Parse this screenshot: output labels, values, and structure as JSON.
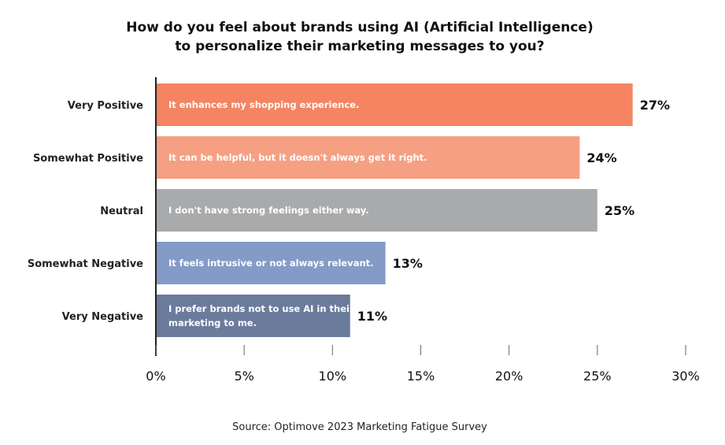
{
  "chart_data": {
    "type": "bar",
    "orientation": "horizontal",
    "title": [
      "How do you feel about brands using AI (Artificial Intelligence)",
      "to personalize their marketing messages to you?"
    ],
    "categories": [
      "Very Positive",
      "Somewhat Positive",
      "Neutral",
      "Somewhat Negative",
      "Very Negative"
    ],
    "values": [
      27,
      24,
      25,
      13,
      11
    ],
    "value_labels": [
      "27%",
      "24%",
      "25%",
      "13%",
      "11%"
    ],
    "bar_text": [
      [
        "It enhances my shopping experience."
      ],
      [
        "It can be helpful, but it doesn't always get it right."
      ],
      [
        "I don't have strong feelings either way."
      ],
      [
        "It feels intrusive or not always relevant."
      ],
      [
        "I prefer brands not to use AI in their",
        "marketing to me."
      ]
    ],
    "colors": [
      "#F48462",
      "#F5A083",
      "#A9AAAB",
      "#839BC6",
      "#6B7B9C"
    ],
    "xlim": [
      0,
      30
    ],
    "xticks": [
      0,
      5,
      10,
      15,
      20,
      25,
      30
    ],
    "xtick_labels": [
      "0%",
      "5%",
      "10%",
      "15%",
      "20%",
      "25%",
      "30%"
    ],
    "xlabel": "",
    "ylabel": "",
    "grid": false,
    "source": "Source: Optimove 2023 Marketing Fatigue Survey"
  }
}
